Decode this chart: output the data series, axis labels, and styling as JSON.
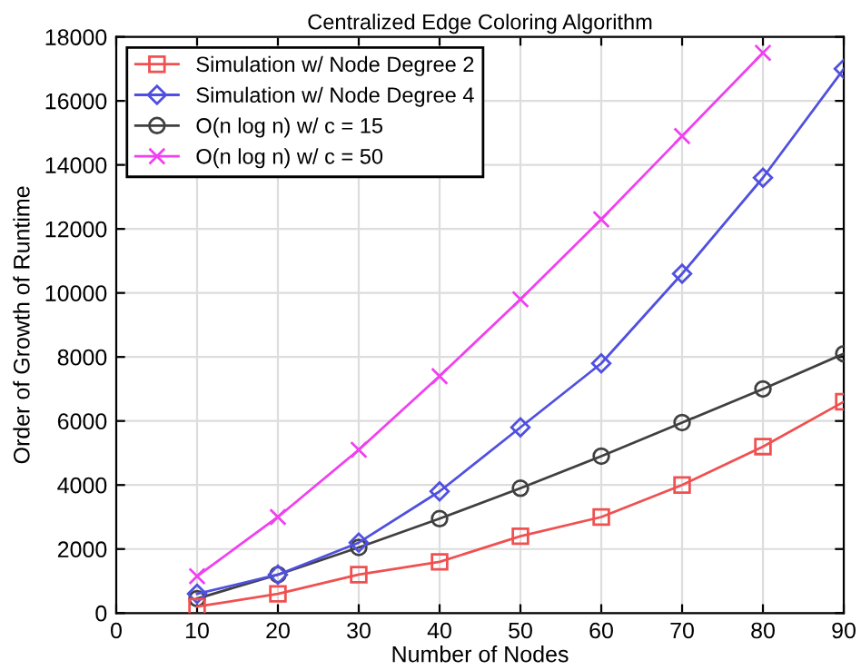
{
  "chart_data": {
    "type": "line",
    "title": "Centralized Edge Coloring Algorithm",
    "xlabel": "Number of Nodes",
    "ylabel": "Order of Growth of Runtime",
    "x": [
      10,
      20,
      30,
      40,
      50,
      60,
      70,
      80,
      90
    ],
    "series": [
      {
        "name": "Simulation w/ Node Degree 2",
        "color": "#f05050",
        "marker": "square",
        "values": [
          200,
          600,
          1200,
          1600,
          2400,
          3000,
          4000,
          5200,
          6600
        ]
      },
      {
        "name": "Simulation w/ Node Degree 4",
        "color": "#5050e0",
        "marker": "diamond",
        "values": [
          600,
          1200,
          2200,
          3800,
          5800,
          7800,
          10600,
          13600,
          17000
        ]
      },
      {
        "name": "O(n log n) w/ c = 15",
        "color": "#404040",
        "marker": "circle",
        "values": [
          450,
          1200,
          2050,
          2950,
          3900,
          4900,
          5950,
          7000,
          8100
        ]
      },
      {
        "name": "O(n log n) w/ c = 50",
        "color": "#f040f0",
        "marker": "cross",
        "values": [
          1150,
          3000,
          5100,
          7400,
          9800,
          12300,
          14900,
          17500,
          null
        ]
      }
    ],
    "xlim": [
      0,
      90
    ],
    "xticks": [
      0,
      10,
      20,
      30,
      40,
      50,
      60,
      70,
      80,
      90
    ],
    "ylim": [
      0,
      18000
    ],
    "yticks": [
      0,
      2000,
      4000,
      6000,
      8000,
      10000,
      12000,
      14000,
      16000,
      18000
    ],
    "grid": true,
    "legend": "top left",
    "line_style": "solid"
  }
}
